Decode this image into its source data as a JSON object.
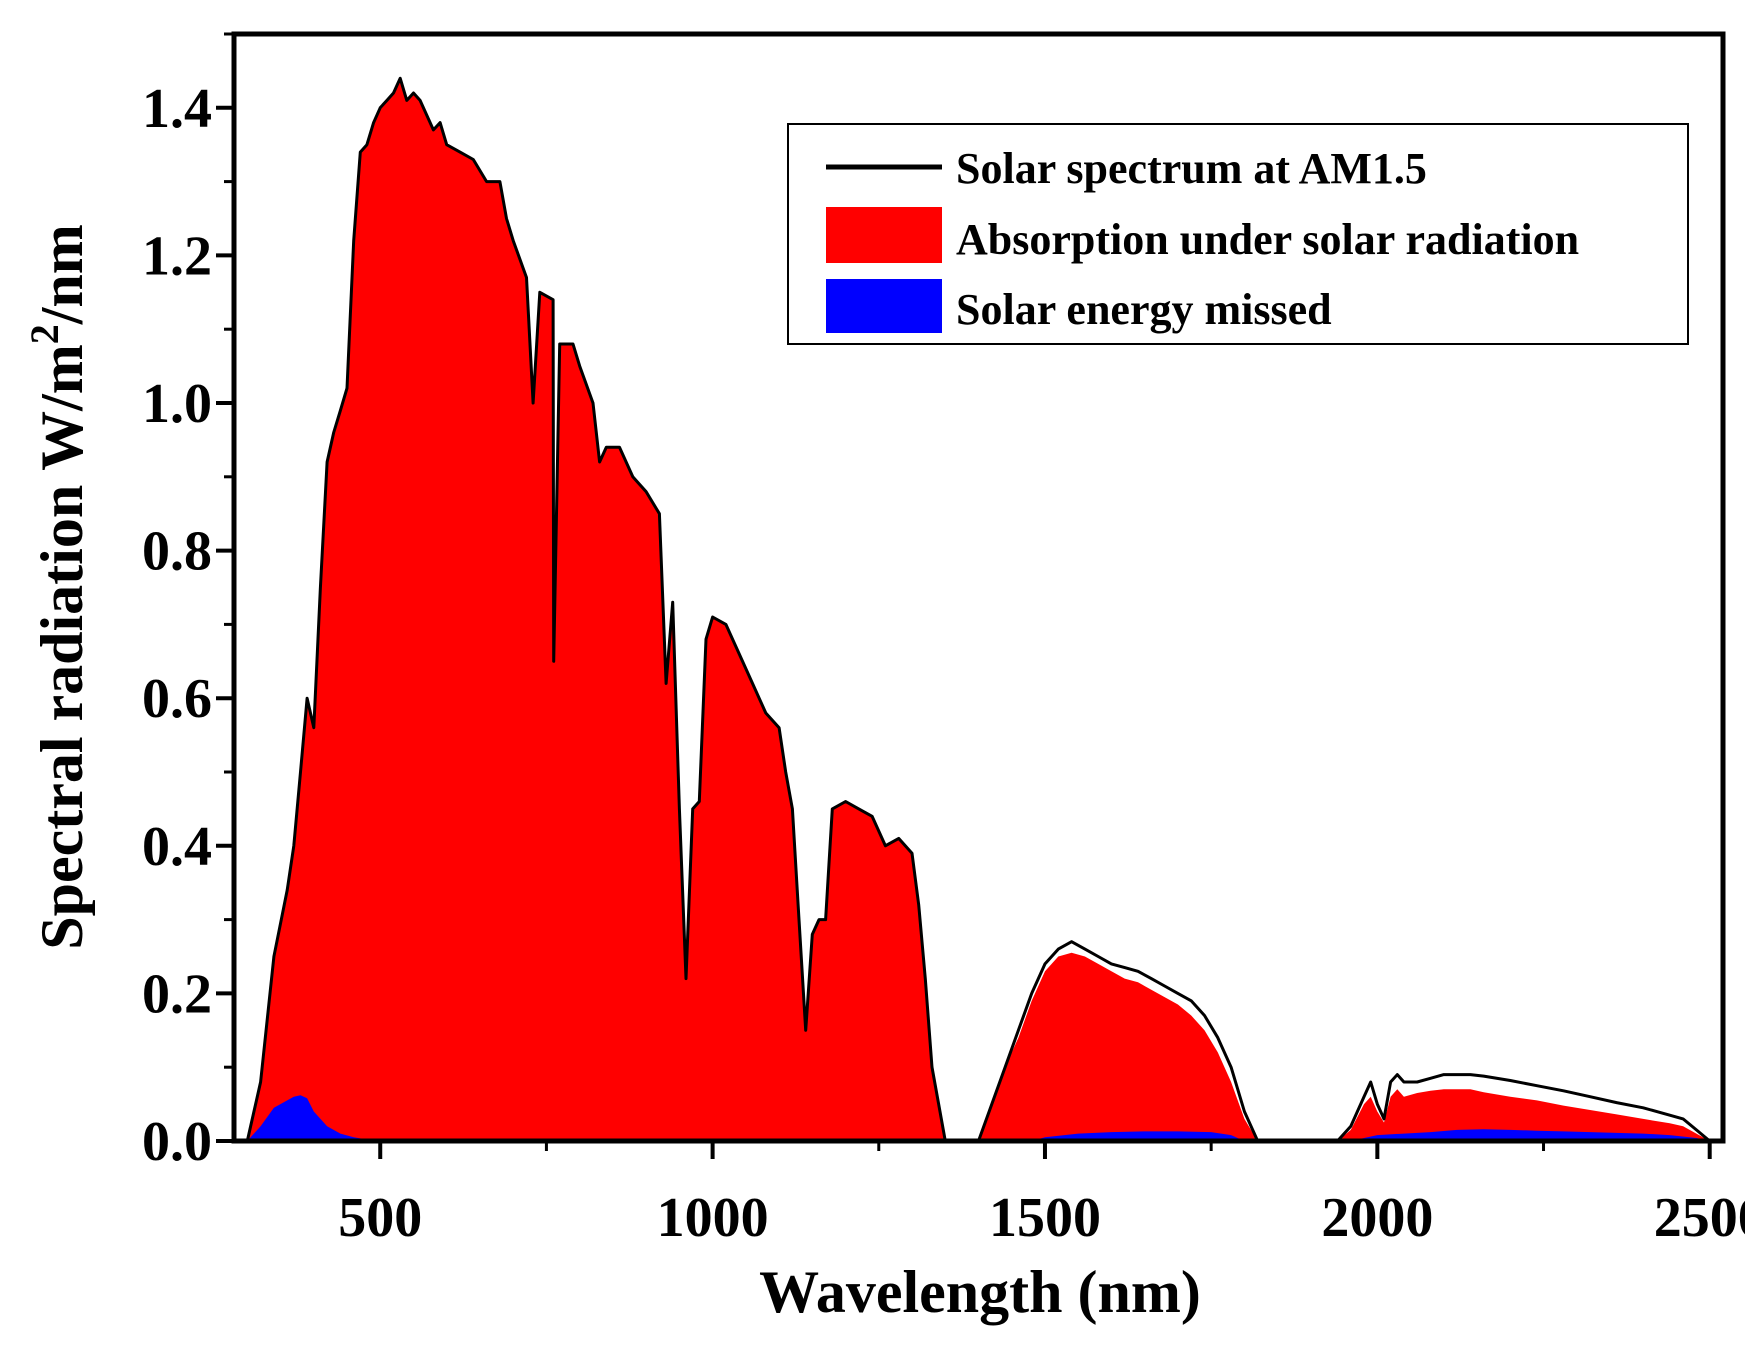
{
  "chart_data": {
    "type": "area",
    "title": "",
    "xlabel": "Wavelength (nm)",
    "ylabel_main": "Spectral radiation W/m",
    "ylabel_sup": "2",
    "ylabel_tail": "/nm",
    "xlim": [
      280,
      2520
    ],
    "ylim": [
      0,
      1.5
    ],
    "x_ticks": [
      500,
      1000,
      1500,
      2000,
      2500
    ],
    "x_tick_labels": [
      "500",
      "1000",
      "1500",
      "2000",
      "2500"
    ],
    "y_ticks": [
      0.0,
      0.2,
      0.4,
      0.6,
      0.8,
      1.0,
      1.2,
      1.4
    ],
    "y_tick_labels": [
      "0.0",
      "0.2",
      "0.4",
      "0.6",
      "0.8",
      "1.0",
      "1.2",
      "1.4"
    ],
    "legend_position": "top-right",
    "grid": false,
    "series": [
      {
        "name": "Solar spectrum at AM1.5",
        "kind": "line",
        "color": "#000000",
        "points": [
          [
            300,
            0
          ],
          [
            320,
            0.08
          ],
          [
            340,
            0.25
          ],
          [
            360,
            0.34
          ],
          [
            370,
            0.4
          ],
          [
            380,
            0.5
          ],
          [
            390,
            0.6
          ],
          [
            400,
            0.56
          ],
          [
            410,
            0.75
          ],
          [
            420,
            0.92
          ],
          [
            430,
            0.96
          ],
          [
            440,
            0.99
          ],
          [
            450,
            1.02
          ],
          [
            460,
            1.22
          ],
          [
            470,
            1.34
          ],
          [
            480,
            1.35
          ],
          [
            490,
            1.38
          ],
          [
            500,
            1.4
          ],
          [
            510,
            1.41
          ],
          [
            520,
            1.42
          ],
          [
            530,
            1.44
          ],
          [
            540,
            1.41
          ],
          [
            550,
            1.42
          ],
          [
            560,
            1.41
          ],
          [
            570,
            1.39
          ],
          [
            580,
            1.37
          ],
          [
            590,
            1.38
          ],
          [
            600,
            1.35
          ],
          [
            620,
            1.34
          ],
          [
            640,
            1.33
          ],
          [
            660,
            1.3
          ],
          [
            680,
            1.3
          ],
          [
            690,
            1.25
          ],
          [
            700,
            1.22
          ],
          [
            720,
            1.17
          ],
          [
            730,
            1.0
          ],
          [
            740,
            1.15
          ],
          [
            760,
            1.14
          ],
          [
            761,
            0.65
          ],
          [
            770,
            1.08
          ],
          [
            790,
            1.08
          ],
          [
            800,
            1.05
          ],
          [
            820,
            1.0
          ],
          [
            830,
            0.92
          ],
          [
            840,
            0.94
          ],
          [
            860,
            0.94
          ],
          [
            880,
            0.9
          ],
          [
            900,
            0.88
          ],
          [
            920,
            0.85
          ],
          [
            930,
            0.62
          ],
          [
            940,
            0.73
          ],
          [
            950,
            0.45
          ],
          [
            960,
            0.22
          ],
          [
            970,
            0.45
          ],
          [
            980,
            0.46
          ],
          [
            990,
            0.68
          ],
          [
            1000,
            0.71
          ],
          [
            1020,
            0.7
          ],
          [
            1040,
            0.66
          ],
          [
            1060,
            0.62
          ],
          [
            1080,
            0.58
          ],
          [
            1100,
            0.56
          ],
          [
            1110,
            0.5
          ],
          [
            1120,
            0.45
          ],
          [
            1130,
            0.3
          ],
          [
            1140,
            0.15
          ],
          [
            1150,
            0.28
          ],
          [
            1160,
            0.3
          ],
          [
            1170,
            0.3
          ],
          [
            1180,
            0.45
          ],
          [
            1200,
            0.46
          ],
          [
            1220,
            0.45
          ],
          [
            1240,
            0.44
          ],
          [
            1260,
            0.4
          ],
          [
            1280,
            0.41
          ],
          [
            1300,
            0.39
          ],
          [
            1310,
            0.32
          ],
          [
            1320,
            0.22
          ],
          [
            1330,
            0.1
          ],
          [
            1350,
            0
          ],
          [
            1400,
            0
          ],
          [
            1420,
            0.05
          ],
          [
            1440,
            0.1
          ],
          [
            1460,
            0.15
          ],
          [
            1480,
            0.2
          ],
          [
            1500,
            0.24
          ],
          [
            1520,
            0.26
          ],
          [
            1540,
            0.27
          ],
          [
            1560,
            0.26
          ],
          [
            1580,
            0.25
          ],
          [
            1600,
            0.24
          ],
          [
            1620,
            0.235
          ],
          [
            1640,
            0.23
          ],
          [
            1660,
            0.22
          ],
          [
            1680,
            0.21
          ],
          [
            1700,
            0.2
          ],
          [
            1720,
            0.19
          ],
          [
            1740,
            0.17
          ],
          [
            1760,
            0.14
          ],
          [
            1780,
            0.1
          ],
          [
            1800,
            0.04
          ],
          [
            1820,
            0
          ],
          [
            1940,
            0
          ],
          [
            1960,
            0.02
          ],
          [
            1980,
            0.06
          ],
          [
            1990,
            0.08
          ],
          [
            2000,
            0.05
          ],
          [
            2010,
            0.03
          ],
          [
            2020,
            0.08
          ],
          [
            2030,
            0.09
          ],
          [
            2040,
            0.08
          ],
          [
            2060,
            0.08
          ],
          [
            2080,
            0.085
          ],
          [
            2100,
            0.09
          ],
          [
            2120,
            0.09
          ],
          [
            2140,
            0.09
          ],
          [
            2160,
            0.088
          ],
          [
            2200,
            0.082
          ],
          [
            2240,
            0.075
          ],
          [
            2280,
            0.068
          ],
          [
            2320,
            0.06
          ],
          [
            2360,
            0.052
          ],
          [
            2400,
            0.045
          ],
          [
            2440,
            0.035
          ],
          [
            2460,
            0.03
          ],
          [
            2480,
            0.015
          ],
          [
            2500,
            0
          ]
        ]
      },
      {
        "name": "Absorption under solar radiation",
        "kind": "area",
        "color": "#ff0000",
        "points": [
          [
            300,
            0
          ],
          [
            320,
            0.08
          ],
          [
            340,
            0.25
          ],
          [
            360,
            0.34
          ],
          [
            370,
            0.4
          ],
          [
            380,
            0.5
          ],
          [
            390,
            0.6
          ],
          [
            400,
            0.56
          ],
          [
            410,
            0.75
          ],
          [
            420,
            0.92
          ],
          [
            430,
            0.96
          ],
          [
            440,
            0.99
          ],
          [
            450,
            1.02
          ],
          [
            460,
            1.22
          ],
          [
            470,
            1.34
          ],
          [
            480,
            1.35
          ],
          [
            490,
            1.38
          ],
          [
            500,
            1.4
          ],
          [
            510,
            1.41
          ],
          [
            520,
            1.42
          ],
          [
            530,
            1.44
          ],
          [
            540,
            1.41
          ],
          [
            550,
            1.42
          ],
          [
            560,
            1.41
          ],
          [
            570,
            1.39
          ],
          [
            580,
            1.37
          ],
          [
            590,
            1.38
          ],
          [
            600,
            1.35
          ],
          [
            620,
            1.34
          ],
          [
            640,
            1.33
          ],
          [
            660,
            1.3
          ],
          [
            680,
            1.3
          ],
          [
            690,
            1.25
          ],
          [
            700,
            1.22
          ],
          [
            720,
            1.17
          ],
          [
            730,
            1.0
          ],
          [
            740,
            1.15
          ],
          [
            760,
            1.14
          ],
          [
            761,
            0.65
          ],
          [
            770,
            1.08
          ],
          [
            790,
            1.08
          ],
          [
            800,
            1.05
          ],
          [
            820,
            1.0
          ],
          [
            830,
            0.92
          ],
          [
            840,
            0.94
          ],
          [
            860,
            0.94
          ],
          [
            880,
            0.9
          ],
          [
            900,
            0.88
          ],
          [
            920,
            0.85
          ],
          [
            930,
            0.62
          ],
          [
            940,
            0.73
          ],
          [
            950,
            0.45
          ],
          [
            960,
            0.22
          ],
          [
            970,
            0.45
          ],
          [
            980,
            0.46
          ],
          [
            990,
            0.68
          ],
          [
            1000,
            0.71
          ],
          [
            1020,
            0.7
          ],
          [
            1040,
            0.66
          ],
          [
            1060,
            0.62
          ],
          [
            1080,
            0.58
          ],
          [
            1100,
            0.56
          ],
          [
            1110,
            0.5
          ],
          [
            1120,
            0.45
          ],
          [
            1130,
            0.3
          ],
          [
            1140,
            0.15
          ],
          [
            1150,
            0.28
          ],
          [
            1160,
            0.3
          ],
          [
            1170,
            0.3
          ],
          [
            1180,
            0.45
          ],
          [
            1200,
            0.46
          ],
          [
            1220,
            0.45
          ],
          [
            1240,
            0.44
          ],
          [
            1260,
            0.4
          ],
          [
            1280,
            0.41
          ],
          [
            1300,
            0.39
          ],
          [
            1310,
            0.32
          ],
          [
            1320,
            0.22
          ],
          [
            1330,
            0.1
          ],
          [
            1350,
            0
          ],
          [
            1400,
            0
          ],
          [
            1420,
            0.05
          ],
          [
            1440,
            0.1
          ],
          [
            1460,
            0.14
          ],
          [
            1480,
            0.19
          ],
          [
            1500,
            0.23
          ],
          [
            1520,
            0.25
          ],
          [
            1540,
            0.255
          ],
          [
            1560,
            0.25
          ],
          [
            1580,
            0.24
          ],
          [
            1600,
            0.23
          ],
          [
            1620,
            0.22
          ],
          [
            1640,
            0.215
          ],
          [
            1660,
            0.205
          ],
          [
            1680,
            0.195
          ],
          [
            1700,
            0.185
          ],
          [
            1720,
            0.17
          ],
          [
            1740,
            0.15
          ],
          [
            1760,
            0.12
          ],
          [
            1780,
            0.08
          ],
          [
            1800,
            0.03
          ],
          [
            1820,
            0
          ],
          [
            1940,
            0
          ],
          [
            1960,
            0.015
          ],
          [
            1980,
            0.05
          ],
          [
            1990,
            0.06
          ],
          [
            2000,
            0.04
          ],
          [
            2010,
            0.025
          ],
          [
            2020,
            0.06
          ],
          [
            2030,
            0.07
          ],
          [
            2040,
            0.06
          ],
          [
            2060,
            0.065
          ],
          [
            2080,
            0.068
          ],
          [
            2100,
            0.07
          ],
          [
            2120,
            0.07
          ],
          [
            2140,
            0.07
          ],
          [
            2160,
            0.066
          ],
          [
            2200,
            0.06
          ],
          [
            2240,
            0.055
          ],
          [
            2280,
            0.048
          ],
          [
            2320,
            0.042
          ],
          [
            2360,
            0.036
          ],
          [
            2400,
            0.03
          ],
          [
            2440,
            0.024
          ],
          [
            2460,
            0.02
          ],
          [
            2480,
            0.01
          ],
          [
            2500,
            0
          ]
        ]
      },
      {
        "name": "Solar energy missed",
        "kind": "area",
        "color": "#0000ff",
        "points": [
          [
            300,
            0
          ],
          [
            320,
            0.02
          ],
          [
            340,
            0.045
          ],
          [
            360,
            0.055
          ],
          [
            370,
            0.06
          ],
          [
            380,
            0.062
          ],
          [
            390,
            0.058
          ],
          [
            400,
            0.04
          ],
          [
            420,
            0.02
          ],
          [
            440,
            0.01
          ],
          [
            460,
            0.005
          ],
          [
            480,
            0.002
          ],
          [
            500,
            0
          ],
          [
            1480,
            0
          ],
          [
            1500,
            0.005
          ],
          [
            1550,
            0.01
          ],
          [
            1600,
            0.012
          ],
          [
            1650,
            0.013
          ],
          [
            1700,
            0.013
          ],
          [
            1750,
            0.012
          ],
          [
            1780,
            0.008
          ],
          [
            1800,
            0
          ],
          [
            1960,
            0
          ],
          [
            1980,
            0.004
          ],
          [
            2000,
            0.008
          ],
          [
            2040,
            0.01
          ],
          [
            2080,
            0.012
          ],
          [
            2120,
            0.015
          ],
          [
            2160,
            0.016
          ],
          [
            2200,
            0.015
          ],
          [
            2240,
            0.014
          ],
          [
            2280,
            0.013
          ],
          [
            2320,
            0.012
          ],
          [
            2360,
            0.011
          ],
          [
            2400,
            0.01
          ],
          [
            2440,
            0.008
          ],
          [
            2480,
            0.004
          ],
          [
            2500,
            0
          ]
        ]
      }
    ]
  }
}
